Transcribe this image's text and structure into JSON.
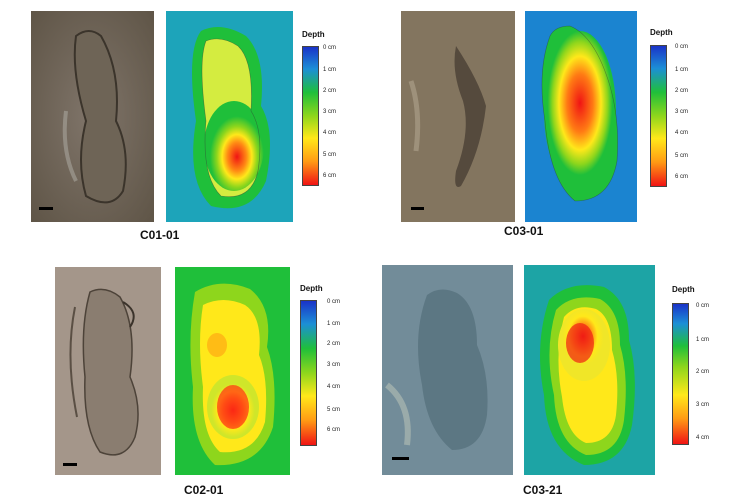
{
  "panels": [
    {
      "label": "C01-01",
      "legend": {
        "title": "Depth",
        "ticks": [
          "0 cm",
          "1 cm",
          "2 cm",
          "3 cm",
          "4 cm",
          "5 cm",
          "6 cm"
        ]
      },
      "colors": {
        "photo": "#7d7264"
      }
    },
    {
      "label": "C03-01",
      "legend": {
        "title": "Depth",
        "ticks": [
          "0 cm",
          "1 cm",
          "2 cm",
          "3 cm",
          "4 cm",
          "5 cm",
          "6 cm"
        ]
      },
      "colors": {
        "photo": "#8f8068"
      }
    },
    {
      "label": "C02-01",
      "legend": {
        "title": "Depth",
        "ticks": [
          "0 cm",
          "1 cm",
          "2 cm",
          "3 cm",
          "4 cm",
          "5 cm",
          "6 cm"
        ]
      },
      "colors": {
        "photo": "#9c8f83"
      }
    },
    {
      "label": "C03-21",
      "legend": {
        "title": "Depth",
        "ticks": [
          "0 cm",
          "1 cm",
          "2 cm",
          "3 cm",
          "4 cm"
        ]
      },
      "colors": {
        "photo": "#7d95a3"
      }
    }
  ],
  "legend_colors": [
    "#1a33c8",
    "#1c8fd6",
    "#1fbf3a",
    "#8ed61c",
    "#ffe81a",
    "#ff9a14",
    "#f01414"
  ]
}
